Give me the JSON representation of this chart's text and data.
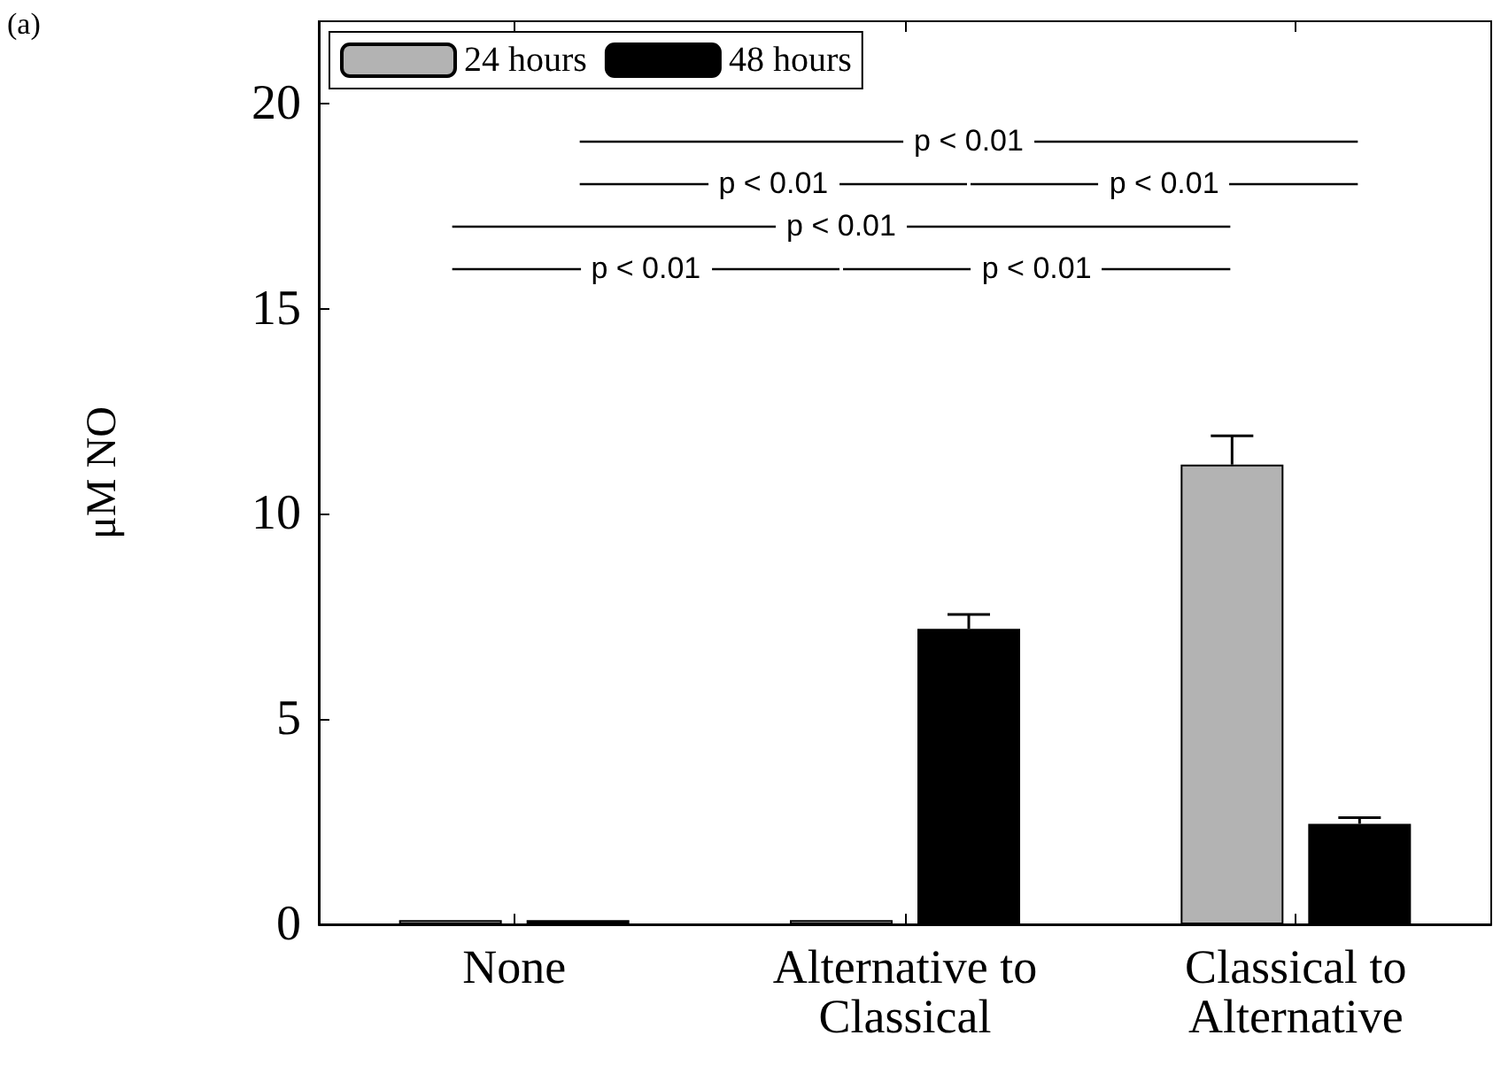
{
  "chart_data": {
    "type": "bar",
    "ylabel": "μM NO",
    "categories": [
      "None",
      "Alternative to\nClassical",
      "Classical to\nAlternative"
    ],
    "series": [
      {
        "name": "24 hours",
        "color": "#b3b3b3",
        "values": [
          0.1,
          0.1,
          11.2
        ],
        "errors": [
          null,
          null,
          0.7
        ]
      },
      {
        "name": "48 hours",
        "color": "#000000",
        "values": [
          0.1,
          7.2,
          2.45
        ],
        "errors": [
          null,
          0.35,
          0.15
        ]
      }
    ],
    "ylim": [
      0,
      22
    ],
    "yticks": [
      0,
      5,
      10,
      15,
      20
    ],
    "grid": false,
    "legend": "top left",
    "annotations": [
      "(a)",
      "p < 0.01",
      "p < 0.01",
      "p < 0.01",
      "p < 0.01",
      "p < 0.01",
      "p < 0.01"
    ]
  }
}
